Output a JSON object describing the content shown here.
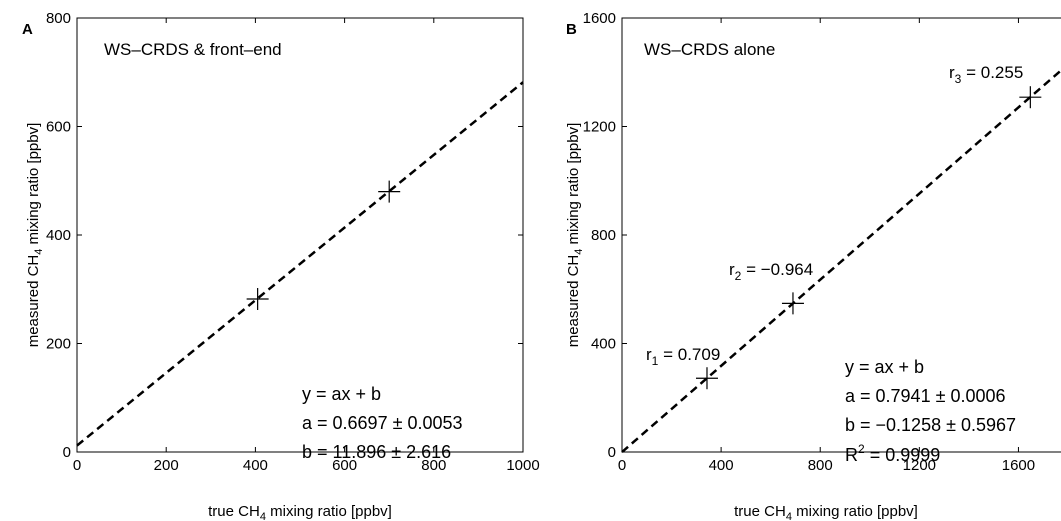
{
  "chart_data": [
    {
      "panel_letter": "A",
      "type": "scatter",
      "title": "WS–CRDS & front–end",
      "xlabel": {
        "pre": "true CH",
        "sub": "4",
        "post": " mixing ratio [ppbv]"
      },
      "ylabel": {
        "pre": "measured CH",
        "sub": "4",
        "post": " mixing ratio [ppbv]"
      },
      "xlim": [
        0,
        1000
      ],
      "ylim": [
        0,
        800
      ],
      "xticks": [
        0,
        200,
        400,
        600,
        800,
        1000
      ],
      "yticks": [
        0,
        200,
        400,
        600,
        800
      ],
      "grid": false,
      "points": [
        {
          "x": 405,
          "y": 282
        },
        {
          "x": 700,
          "y": 480
        }
      ],
      "fit": {
        "a": 0.6697,
        "b": 11.896
      },
      "equations": [
        "y = ax + b",
        "a = 0.6697 ± 0.0053",
        "b = 11.896 ± 2.616"
      ]
    },
    {
      "panel_letter": "B",
      "type": "scatter",
      "title": "WS–CRDS alone",
      "xlabel": {
        "pre": "true CH",
        "sub": "4",
        "post": " mixing ratio [ppbv]"
      },
      "ylabel": {
        "pre": "measured CH",
        "sub": "4",
        "post": " mixing ratio [ppbv]"
      },
      "xlim": [
        0,
        1800
      ],
      "ylim": [
        0,
        1600
      ],
      "xticks": [
        0,
        400,
        800,
        1200,
        1600
      ],
      "yticks": [
        0,
        400,
        800,
        1200,
        1600
      ],
      "grid": false,
      "points": [
        {
          "x": 343,
          "y": 272
        },
        {
          "x": 690,
          "y": 548
        },
        {
          "x": 1648,
          "y": 1308
        }
      ],
      "fit": {
        "a": 0.7941,
        "b": -0.1258
      },
      "equations": [
        "y = ax + b",
        "a = 0.7941 ± 0.0006",
        "b = −0.1258 ± 0.5967",
        "R^2 = 0.9999"
      ],
      "r_labels": [
        {
          "r": "r",
          "sub": "1",
          "value": " = 0.709"
        },
        {
          "r": "r",
          "sub": "2",
          "value": " = −0.964"
        },
        {
          "r": "r",
          "sub": "3",
          "value": " = 0.255"
        }
      ]
    }
  ]
}
